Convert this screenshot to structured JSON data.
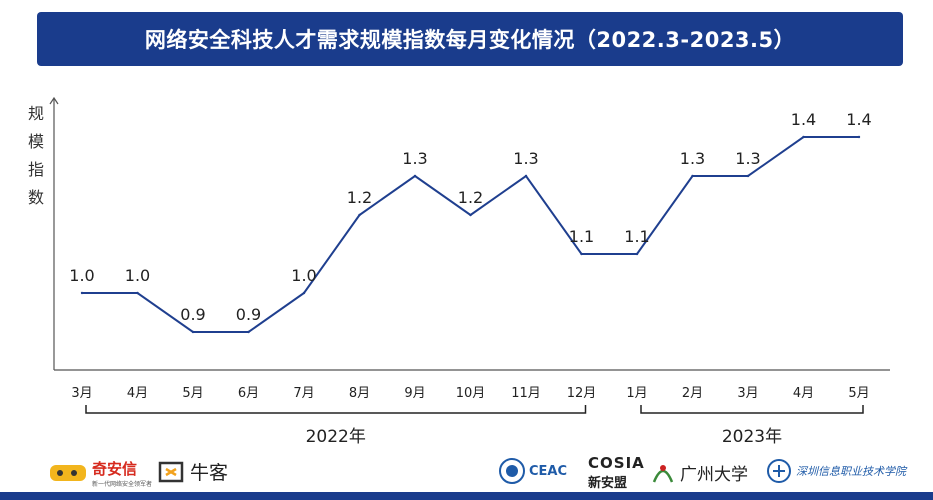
{
  "chart_data": {
    "type": "line",
    "title": "网络安全科技人才需求规模指数每月变化情况（2022.3-2023.5）",
    "ylabel": [
      "规",
      "模",
      "指",
      "数"
    ],
    "categories": [
      "3月",
      "4月",
      "5月",
      "6月",
      "7月",
      "8月",
      "9月",
      "10月",
      "11月",
      "12月",
      "1月",
      "2月",
      "3月",
      "4月",
      "5月"
    ],
    "values": [
      1.0,
      1.0,
      0.9,
      0.9,
      1.0,
      1.2,
      1.3,
      1.2,
      1.3,
      1.1,
      1.1,
      1.3,
      1.3,
      1.4,
      1.4
    ],
    "value_labels": [
      "1.0",
      "1.0",
      "0.9",
      "0.9",
      "1.0",
      "1.2",
      "1.3",
      "1.2",
      "1.3",
      "1.1",
      "1.1",
      "1.3",
      "1.3",
      "1.4",
      "1.4"
    ],
    "years": [
      {
        "label": "2022年",
        "from": 0,
        "to": 9
      },
      {
        "label": "2023年",
        "from": 10,
        "to": 14
      }
    ],
    "ylim": [
      0.7,
      1.5
    ],
    "grid": false,
    "line_color": "#1f3f8f"
  },
  "footer": {
    "logo1_text": "奇安信",
    "logo1_sub": "新一代网络安全领军者",
    "logo2_text": "牛客",
    "logo3_text": "CEAC",
    "logo4_text": "COSIA",
    "logo4_sub": "新安盟",
    "logo5_text": "广州大学",
    "logo6_text": "深圳信息职业技术学院"
  }
}
